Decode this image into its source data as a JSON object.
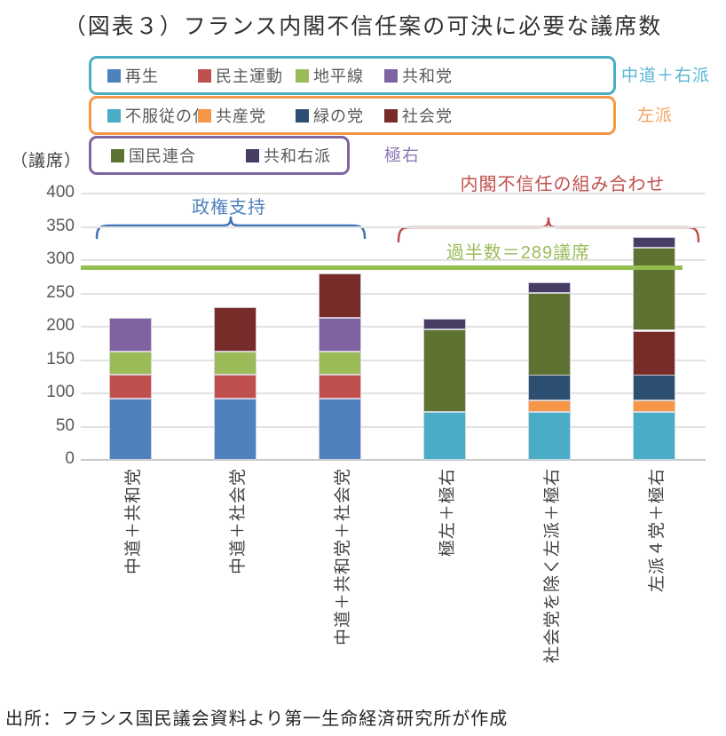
{
  "title": "（図表３）フランス内閣不信任案の可決に必要な議席数",
  "source": "出所：フランス国民議会資料より第一生命経済研究所が作成",
  "axis": {
    "unit_label": "（議席）",
    "ymin": 0,
    "ymax": 400,
    "ytick_step": 50
  },
  "legend": {
    "groups": [
      {
        "label": "中道＋右派",
        "border_color": "#4BACC6",
        "label_color": "#56B6D5",
        "items": [
          {
            "name": "再生",
            "color": "#4F81BD"
          },
          {
            "name": "民主運動",
            "color": "#C0504D"
          },
          {
            "name": "地平線",
            "color": "#9BBB59"
          },
          {
            "name": "共和党",
            "color": "#8064A2"
          }
        ]
      },
      {
        "label": "左派",
        "border_color": "#F79646",
        "label_color": "#F8A35E",
        "items": [
          {
            "name": "不服従の仏",
            "color": "#4BACC6"
          },
          {
            "name": "共産党",
            "color": "#F79646"
          },
          {
            "name": "緑の党",
            "color": "#2B4E71"
          },
          {
            "name": "社会党",
            "color": "#772C2A"
          }
        ]
      },
      {
        "label": "極右",
        "border_color": "#8064A2",
        "label_color": "#8E79B9",
        "items": [
          {
            "name": "国民連合",
            "color": "#5E7331"
          },
          {
            "name": "共和右派",
            "color": "#473C63"
          }
        ]
      }
    ]
  },
  "annotations": {
    "support": {
      "text": "政権支持",
      "color": "#4F81BD",
      "bracket_color": "#3F74B5"
    },
    "censure": {
      "text": "内閣不信任の組み合わせ",
      "color": "#C0504D",
      "bracket_color": "#C0504D"
    },
    "majority": {
      "text": "過半数＝289議席",
      "color": "#9BBB59",
      "line_color": "#94BE4F",
      "value": 289
    }
  },
  "chart_data": {
    "type": "bar",
    "stacked": true,
    "title": "（図表３）フランス内閣不信任案の可決に必要な議席数",
    "ylabel": "（議席）",
    "ylim": [
      0,
      400
    ],
    "grid": true,
    "categories": [
      "中道＋共和党",
      "中道＋社会党",
      "中道＋共和党＋社会党",
      "極左＋極右",
      "社会党を除く左派＋極右",
      "左派４党＋極右"
    ],
    "series": [
      {
        "name": "再生",
        "color": "#4F81BD",
        "values": [
          92,
          92,
          92,
          0,
          0,
          0
        ]
      },
      {
        "name": "民主運動",
        "color": "#C0504D",
        "values": [
          36,
          36,
          36,
          0,
          0,
          0
        ]
      },
      {
        "name": "地平線",
        "color": "#9BBB59",
        "values": [
          35,
          35,
          35,
          0,
          0,
          0
        ]
      },
      {
        "name": "共和党",
        "color": "#8064A2",
        "values": [
          50,
          0,
          50,
          0,
          0,
          0
        ]
      },
      {
        "name": "不服従の仏",
        "color": "#4BACC6",
        "values": [
          0,
          0,
          0,
          72,
          72,
          72
        ]
      },
      {
        "name": "共産党",
        "color": "#F79646",
        "values": [
          0,
          0,
          0,
          0,
          17,
          17
        ]
      },
      {
        "name": "緑の党",
        "color": "#2B4E71",
        "values": [
          0,
          0,
          0,
          0,
          38,
          38
        ]
      },
      {
        "name": "社会党",
        "color": "#772C2A",
        "values": [
          0,
          67,
          67,
          0,
          0,
          67
        ]
      },
      {
        "name": "国民連合",
        "color": "#5E7331",
        "values": [
          0,
          0,
          0,
          124,
          124,
          124
        ]
      },
      {
        "name": "共和右派",
        "color": "#473C63",
        "values": [
          0,
          0,
          0,
          16,
          16,
          16
        ]
      }
    ],
    "totals": [
      213,
      230,
      280,
      212,
      267,
      334
    ],
    "majority_line": 289
  }
}
